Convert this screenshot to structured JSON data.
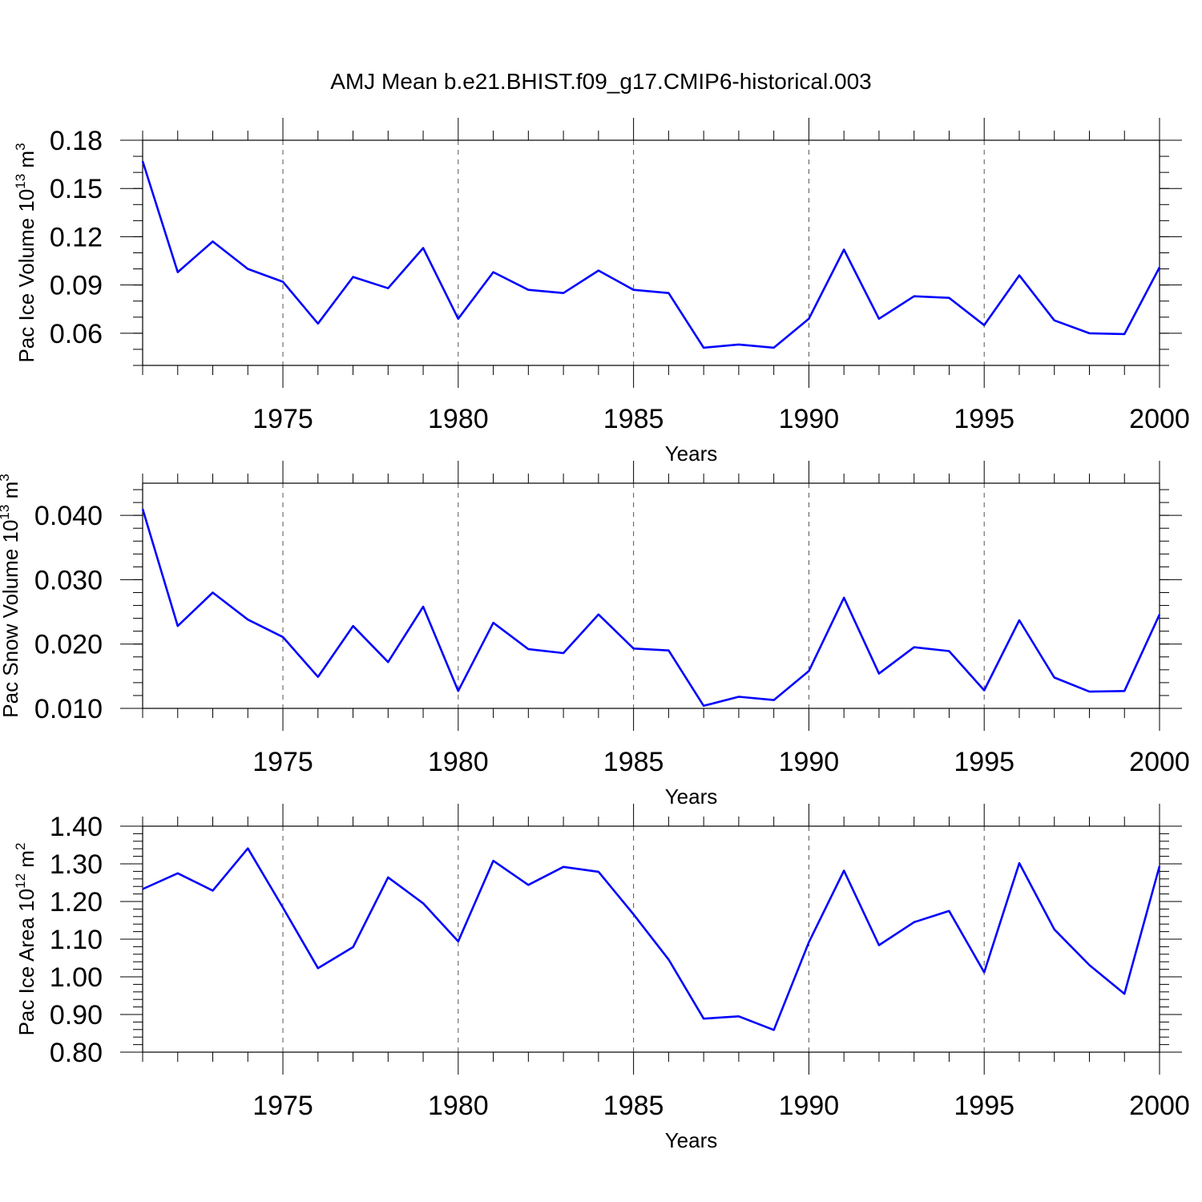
{
  "figure_title": "AMJ Mean b.e21.BHIST.f09_g17.CMIP6-historical.003",
  "colors": {
    "series": "#0000ff",
    "axis": "#000000",
    "grid": "#555555"
  },
  "chart_data": [
    {
      "type": "line",
      "title": "AMJ Mean b.e21.BHIST.f09_g17.CMIP6-historical.003",
      "ylabel_main": "Pac Ice Volume 10",
      "ylabel_exp": "13",
      "ylabel_unit": " m",
      "ylabel_unit_exp": "3",
      "xlabel": "Years",
      "xlim": [
        1971,
        2000
      ],
      "ylim": [
        0.04,
        0.18
      ],
      "x_ticks": [
        1975,
        1980,
        1985,
        1990,
        1995,
        2000
      ],
      "x_tick_labels": [
        "1975",
        "1980",
        "1985",
        "1990",
        "1995",
        "2000"
      ],
      "y_ticks": [
        0.06,
        0.09,
        0.12,
        0.15,
        0.18
      ],
      "y_tick_labels": [
        "0.06",
        "0.09",
        "0.12",
        "0.15",
        "0.18"
      ],
      "y_minor_step": 0.01,
      "grid": "x-dashed",
      "x": [
        1971,
        1972,
        1973,
        1974,
        1975,
        1976,
        1977,
        1978,
        1979,
        1980,
        1981,
        1982,
        1983,
        1984,
        1985,
        1986,
        1987,
        1988,
        1989,
        1990,
        1991,
        1992,
        1993,
        1994,
        1995,
        1996,
        1997,
        1998,
        1999,
        2000
      ],
      "series": [
        {
          "name": "Pac Ice Volume",
          "values": [
            0.167,
            0.098,
            0.117,
            0.1,
            0.092,
            0.066,
            0.095,
            0.088,
            0.113,
            0.069,
            0.098,
            0.087,
            0.085,
            0.099,
            0.087,
            0.085,
            0.051,
            0.053,
            0.051,
            0.069,
            0.112,
            0.069,
            0.083,
            0.082,
            0.065,
            0.096,
            0.068,
            0.06,
            0.0595,
            0.101
          ]
        }
      ]
    },
    {
      "type": "line",
      "ylabel_main": "Pac Snow Volume 10",
      "ylabel_exp": "13",
      "ylabel_unit": " m",
      "ylabel_unit_exp": "3",
      "xlabel": "Years",
      "xlim": [
        1971,
        2000
      ],
      "ylim": [
        0.01,
        0.045
      ],
      "x_ticks": [
        1975,
        1980,
        1985,
        1990,
        1995,
        2000
      ],
      "x_tick_labels": [
        "1975",
        "1980",
        "1985",
        "1990",
        "1995",
        "2000"
      ],
      "y_ticks": [
        0.01,
        0.02,
        0.03,
        0.04
      ],
      "y_tick_labels": [
        "0.010",
        "0.020",
        "0.030",
        "0.040"
      ],
      "y_minor_step": 0.002,
      "grid": "x-dashed",
      "x": [
        1971,
        1972,
        1973,
        1974,
        1975,
        1976,
        1977,
        1978,
        1979,
        1980,
        1981,
        1982,
        1983,
        1984,
        1985,
        1986,
        1987,
        1988,
        1989,
        1990,
        1991,
        1992,
        1993,
        1994,
        1995,
        1996,
        1997,
        1998,
        1999,
        2000
      ],
      "series": [
        {
          "name": "Pac Snow Volume",
          "values": [
            0.041,
            0.0228,
            0.028,
            0.0238,
            0.0211,
            0.0149,
            0.0228,
            0.0172,
            0.0258,
            0.0127,
            0.0233,
            0.0192,
            0.0186,
            0.0246,
            0.0193,
            0.019,
            0.0104,
            0.0118,
            0.0113,
            0.0158,
            0.0272,
            0.0154,
            0.0195,
            0.0189,
            0.0128,
            0.0237,
            0.0148,
            0.0126,
            0.0127,
            0.0246
          ]
        }
      ]
    },
    {
      "type": "line",
      "ylabel_main": "Pac Ice Area 10",
      "ylabel_exp": "12",
      "ylabel_unit": " m",
      "ylabel_unit_exp": "2",
      "xlabel": "Years",
      "xlim": [
        1971,
        2000
      ],
      "ylim": [
        0.8,
        1.4
      ],
      "x_ticks": [
        1975,
        1980,
        1985,
        1990,
        1995,
        2000
      ],
      "x_tick_labels": [
        "1975",
        "1980",
        "1985",
        "1990",
        "1995",
        "2000"
      ],
      "y_ticks": [
        0.8,
        0.9,
        1.0,
        1.1,
        1.2,
        1.3,
        1.4
      ],
      "y_tick_labels": [
        "0.80",
        "0.90",
        "1.00",
        "1.10",
        "1.20",
        "1.30",
        "1.40"
      ],
      "y_minor_step": 0.02,
      "grid": "x-dashed",
      "x": [
        1971,
        1972,
        1973,
        1974,
        1975,
        1976,
        1977,
        1978,
        1979,
        1980,
        1981,
        1982,
        1983,
        1984,
        1985,
        1986,
        1987,
        1988,
        1989,
        1990,
        1991,
        1992,
        1993,
        1994,
        1995,
        1996,
        1997,
        1998,
        1999,
        2000
      ],
      "series": [
        {
          "name": "Pac Ice Area",
          "values": [
            1.233,
            1.275,
            1.229,
            1.341,
            1.184,
            1.023,
            1.079,
            1.264,
            1.195,
            1.094,
            1.308,
            1.244,
            1.292,
            1.279,
            1.166,
            1.046,
            0.889,
            0.895,
            0.859,
            1.092,
            1.282,
            1.084,
            1.145,
            1.175,
            1.012,
            1.302,
            1.126,
            1.031,
            0.955,
            1.294
          ]
        }
      ]
    }
  ]
}
